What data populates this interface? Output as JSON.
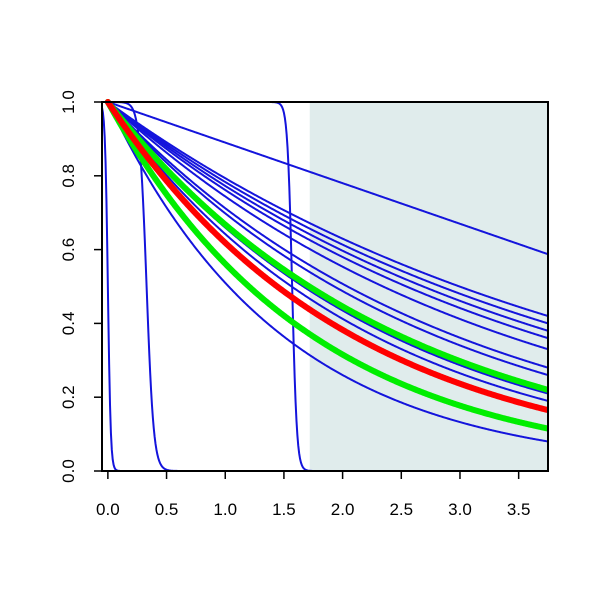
{
  "chart_data": {
    "type": "line",
    "title": "",
    "xlabel": "",
    "ylabel": "",
    "xlim": [
      -0.05,
      3.75
    ],
    "ylim": [
      0.0,
      1.0
    ],
    "x_ticks": [
      0.0,
      0.5,
      1.0,
      1.5,
      2.0,
      2.5,
      3.0,
      3.5
    ],
    "x_tick_labels": [
      "0.0",
      "0.5",
      "1.0",
      "1.5",
      "2.0",
      "2.5",
      "3.0",
      "3.5"
    ],
    "y_ticks": [
      0.0,
      0.2,
      0.4,
      0.6,
      0.8,
      1.0
    ],
    "y_tick_labels": [
      "0.0",
      "0.2",
      "0.4",
      "0.6",
      "0.8",
      "1.0"
    ],
    "grid": false,
    "legend": "none",
    "shaded_region": {
      "x_from": 1.72,
      "x_to": 3.75,
      "color": "#e0ecec"
    },
    "colors": {
      "blue": "#1414dc",
      "red": "#ff0000",
      "green": "#00ee00",
      "shade": "#e0ecec"
    },
    "series": [
      {
        "kind": "step",
        "color": "blue",
        "drop_at": 0.0,
        "sharpness": 0.012
      },
      {
        "kind": "step",
        "color": "blue",
        "drop_at": 0.33,
        "sharpness": 0.03
      },
      {
        "kind": "step",
        "color": "blue",
        "drop_at": 1.57,
        "sharpness": 0.02
      },
      {
        "kind": "linear",
        "color": "blue",
        "slope": 0.11
      },
      {
        "kind": "decay",
        "color": "blue",
        "end_value": 0.42
      },
      {
        "kind": "decay",
        "color": "blue",
        "end_value": 0.4
      },
      {
        "kind": "decay",
        "color": "blue",
        "end_value": 0.38
      },
      {
        "kind": "decay",
        "color": "blue",
        "end_value": 0.36
      },
      {
        "kind": "decay",
        "color": "blue",
        "end_value": 0.33
      },
      {
        "kind": "decay",
        "color": "blue",
        "end_value": 0.28
      },
      {
        "kind": "decay",
        "color": "blue",
        "end_value": 0.26
      },
      {
        "kind": "decay",
        "color": "blue",
        "end_value": 0.21
      },
      {
        "kind": "decay",
        "color": "blue",
        "end_value": 0.19
      },
      {
        "kind": "decay",
        "color": "blue",
        "end_value": 0.08
      },
      {
        "kind": "decay",
        "color": "green",
        "end_value": 0.22,
        "bold": true
      },
      {
        "kind": "decay",
        "color": "green",
        "end_value": 0.115,
        "bold": true
      },
      {
        "kind": "decay",
        "color": "red",
        "end_value": 0.165,
        "bold": true
      }
    ]
  }
}
